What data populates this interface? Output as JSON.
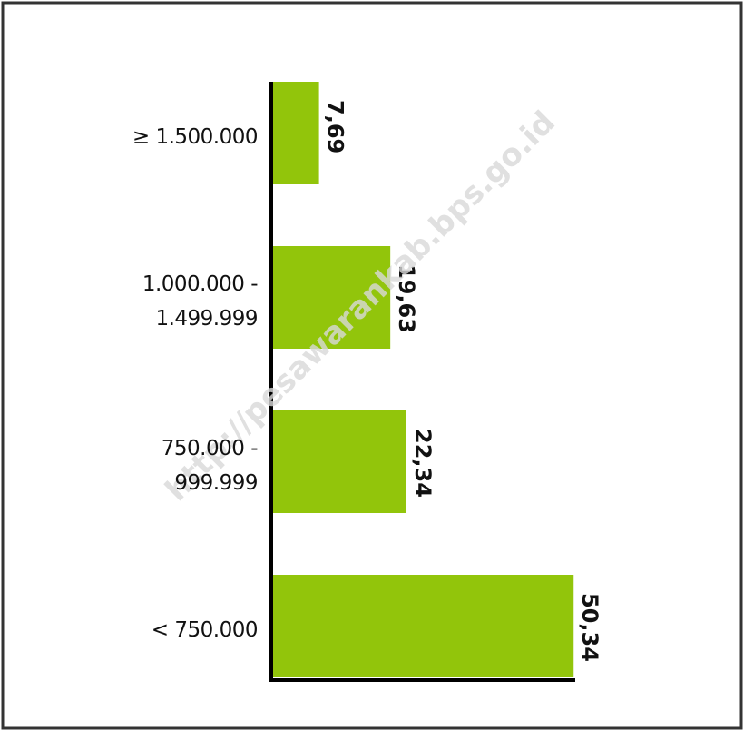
{
  "chart_data": {
    "type": "hbar",
    "categories": [
      "≥ 1.500.000",
      "1.000.000 - 1.499.999",
      "750.000 - 999.999",
      "< 750.000"
    ],
    "values": [
      7.69,
      19.63,
      22.34,
      50.34
    ],
    "value_labels": [
      "7,69",
      "19,63",
      "22,34",
      "50,34"
    ],
    "color": "#92c50b",
    "watermark": "http://pesawarankab.bps.go.id"
  }
}
